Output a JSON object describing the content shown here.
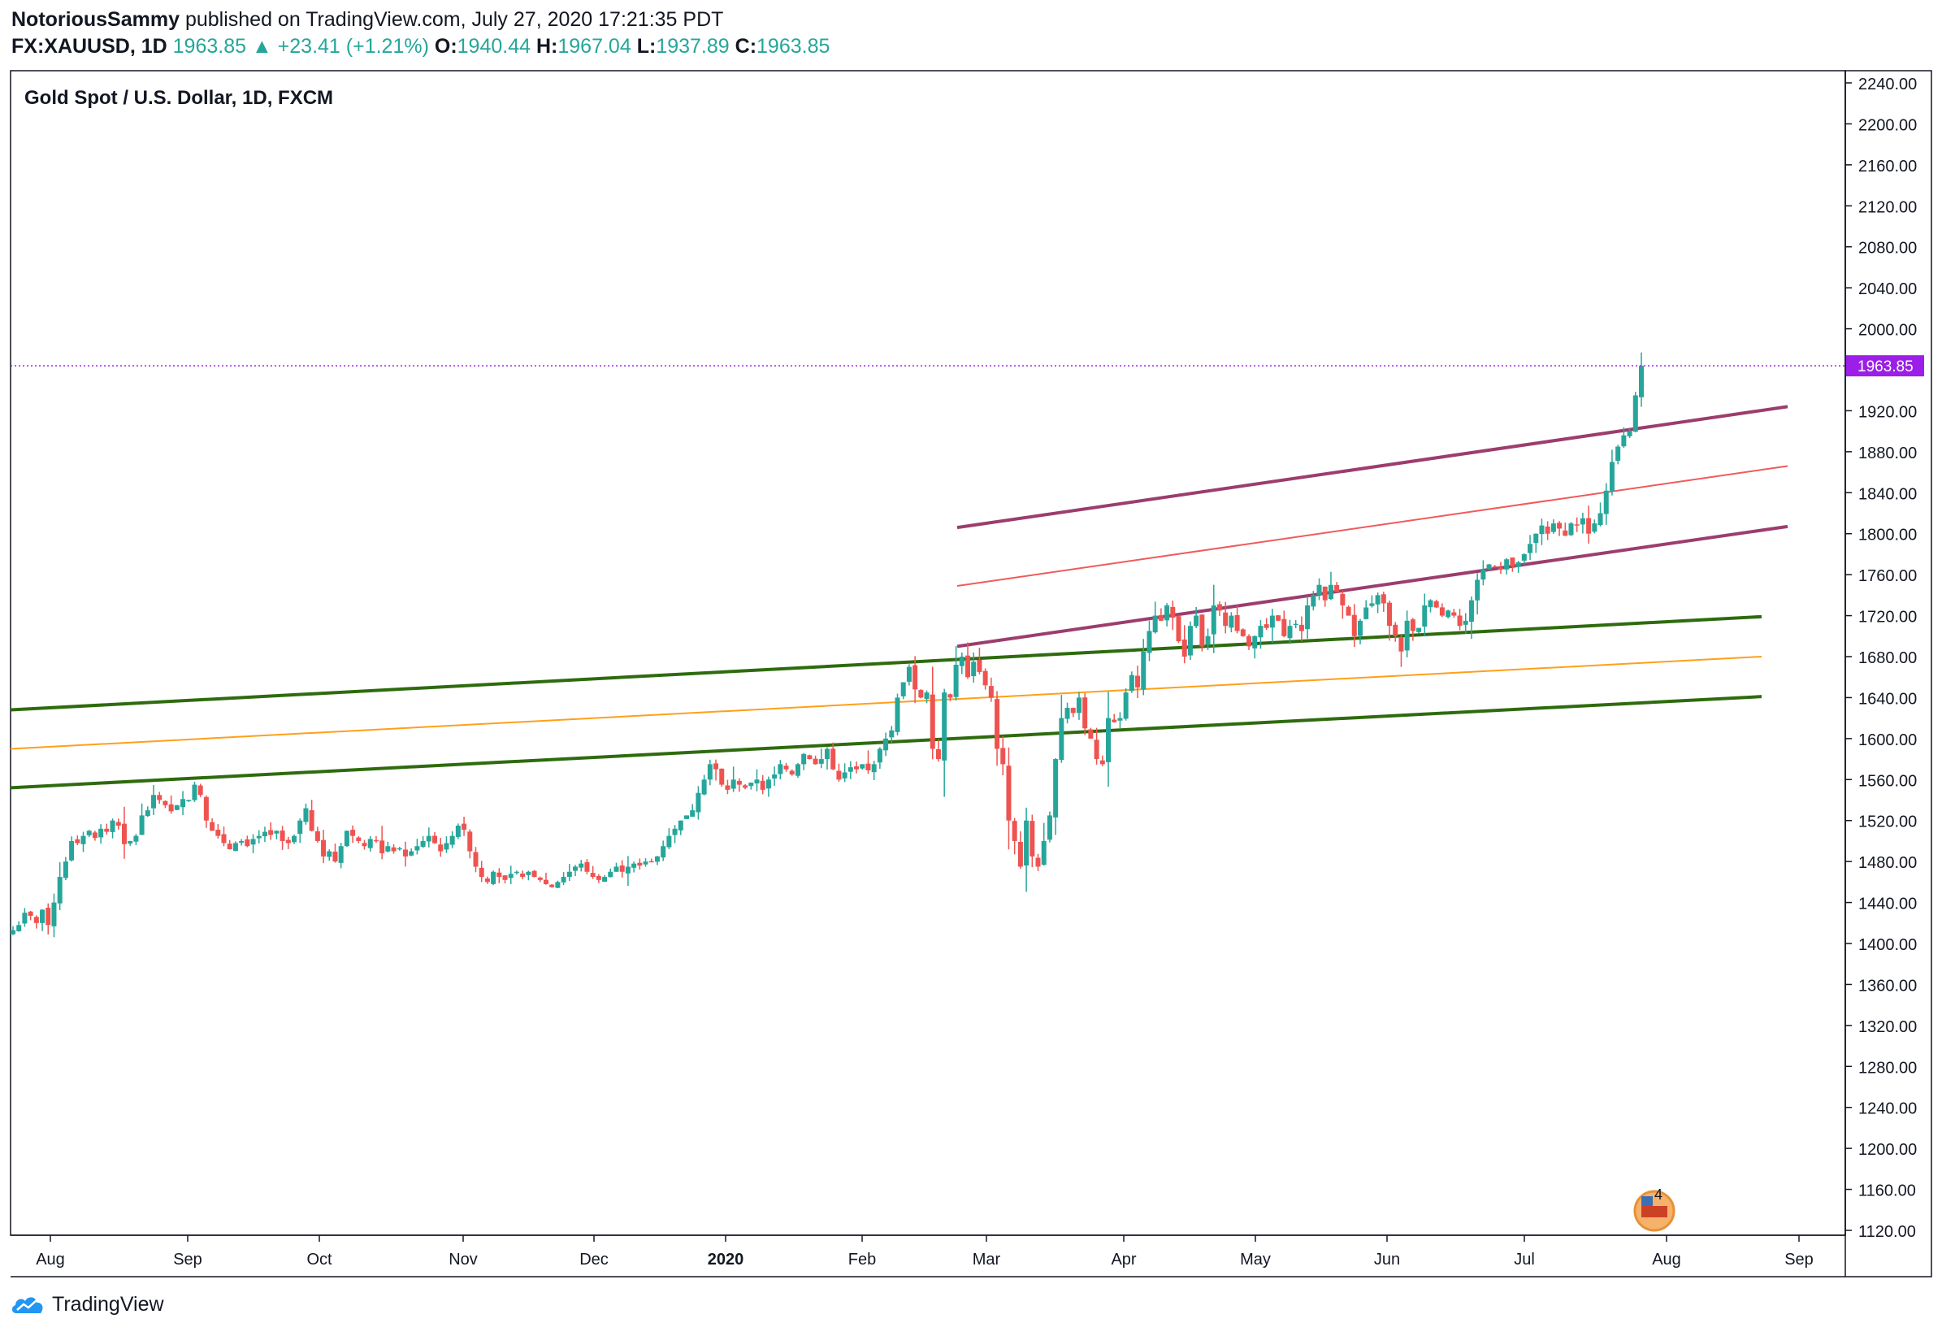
{
  "header": {
    "author": "NotoriousSammy",
    "published": "published on TradingView.com, July 27, 2020 17:21:35 PDT",
    "symbol": "FX:XAUUSD, 1D",
    "last": "1963.85",
    "change": "+23.41 (+1.21%)",
    "o_label": "O:",
    "o": "1940.44",
    "h_label": "H:",
    "h": "1967.04",
    "l_label": "L:",
    "l": "1937.89",
    "c_label": "C:",
    "c": "1963.85"
  },
  "footer": {
    "brand": "TradingView"
  },
  "colors": {
    "up": "#26a69a",
    "down": "#ef5350",
    "channel1": "#9c3d6e",
    "channel1_mid": "#f05a5a",
    "channel2": "#2e6b0e",
    "channel2_mid": "#ff9f1a",
    "price_line": "#9b1fe8"
  },
  "chart_data": {
    "type": "candlestick",
    "title": "Gold Spot / U.S. Dollar, 1D, FXCM",
    "ylim": [
      1120,
      2240
    ],
    "y_ticks": [
      "2240.00",
      "2200.00",
      "2160.00",
      "2120.00",
      "2080.00",
      "2040.00",
      "2000.00",
      "1920.00",
      "1880.00",
      "1840.00",
      "1800.00",
      "1760.00",
      "1720.00",
      "1680.00",
      "1640.00",
      "1600.00",
      "1560.00",
      "1520.00",
      "1480.00",
      "1440.00",
      "1400.00",
      "1360.00",
      "1320.00",
      "1280.00",
      "1240.00",
      "1200.00",
      "1160.00",
      "1120.00"
    ],
    "x_labels": [
      "Aug",
      "Sep",
      "Oct",
      "Nov",
      "Dec",
      "2020",
      "Feb",
      "Mar",
      "Apr",
      "May",
      "Jun",
      "Jul",
      "Aug",
      "Sep"
    ],
    "last_price_label": "1963.85",
    "last_price": 1963.85,
    "badge_count": "4",
    "closes": [
      1413,
      1418,
      1430,
      1427,
      1420,
      1433,
      1418,
      1440,
      1465,
      1480,
      1500,
      1498,
      1505,
      1510,
      1503,
      1512,
      1509,
      1520,
      1515,
      1497,
      1500,
      1505,
      1525,
      1530,
      1545,
      1540,
      1535,
      1529,
      1535,
      1541,
      1540,
      1555,
      1545,
      1520,
      1510,
      1505,
      1498,
      1492,
      1498,
      1500,
      1495,
      1502,
      1505,
      1509,
      1506,
      1510,
      1500,
      1498,
      1505,
      1520,
      1532,
      1510,
      1500,
      1485,
      1490,
      1480,
      1495,
      1510,
      1505,
      1500,
      1495,
      1502,
      1500,
      1488,
      1495,
      1490,
      1493,
      1485,
      1490,
      1495,
      1500,
      1505,
      1498,
      1490,
      1498,
      1505,
      1515,
      1511,
      1490,
      1475,
      1465,
      1460,
      1470,
      1465,
      1462,
      1468,
      1470,
      1465,
      1470,
      1465,
      1462,
      1458,
      1455,
      1460,
      1465,
      1470,
      1475,
      1478,
      1470,
      1465,
      1462,
      1465,
      1470,
      1475,
      1470,
      1475,
      1478,
      1476,
      1480,
      1480,
      1485,
      1495,
      1505,
      1512,
      1520,
      1525,
      1530,
      1547,
      1560,
      1575,
      1570,
      1555,
      1550,
      1560,
      1555,
      1552,
      1557,
      1560,
      1550,
      1560,
      1565,
      1575,
      1570,
      1565,
      1575,
      1585,
      1580,
      1575,
      1580,
      1590,
      1570,
      1560,
      1567,
      1572,
      1570,
      1575,
      1569,
      1575,
      1590,
      1600,
      1608,
      1640,
      1655,
      1670,
      1648,
      1640,
      1645,
      1590,
      1580,
      1645,
      1640,
      1672,
      1680,
      1660,
      1675,
      1665,
      1652,
      1640,
      1590,
      1575,
      1520,
      1500,
      1475,
      1520,
      1485,
      1475,
      1500,
      1525,
      1580,
      1620,
      1630,
      1625,
      1640,
      1610,
      1600,
      1580,
      1575,
      1620,
      1616,
      1620,
      1645,
      1662,
      1650,
      1685,
      1705,
      1720,
      1715,
      1730,
      1718,
      1695,
      1680,
      1710,
      1720,
      1690,
      1700,
      1730,
      1725,
      1710,
      1720,
      1705,
      1700,
      1690,
      1700,
      1710,
      1708,
      1720,
      1715,
      1700,
      1710,
      1712,
      1705,
      1730,
      1740,
      1750,
      1735,
      1750,
      1743,
      1730,
      1720,
      1700,
      1715,
      1728,
      1732,
      1740,
      1732,
      1710,
      1700,
      1685,
      1715,
      1705,
      1708,
      1730,
      1735,
      1728,
      1720,
      1725,
      1720,
      1710,
      1715,
      1735,
      1755,
      1765,
      1770,
      1768,
      1765,
      1775,
      1768,
      1772,
      1780,
      1790,
      1800,
      1808,
      1800,
      1810,
      1805,
      1798,
      1810,
      1808,
      1815,
      1800,
      1810,
      1820,
      1842,
      1870,
      1885,
      1896,
      1900,
      1935,
      1963.85
    ]
  }
}
